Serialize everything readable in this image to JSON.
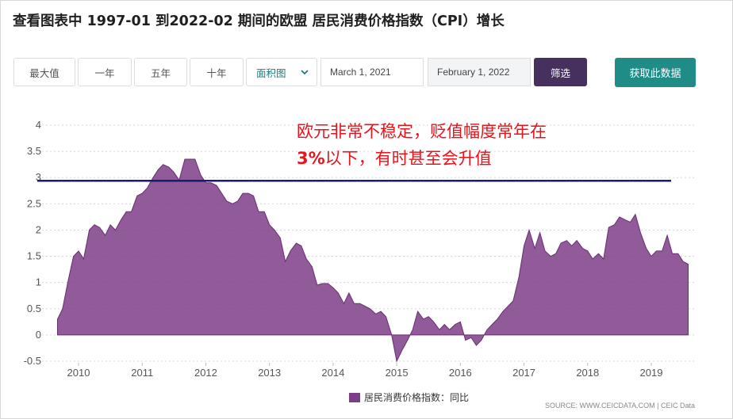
{
  "title": "查看图表中 1997-01 到2022-02 期间的欧盟 居民消费价格指数（CPI）增长",
  "toolbar": {
    "range_buttons": [
      "最大值",
      "一年",
      "五年",
      "十年"
    ],
    "chart_type": "面积图",
    "date_from": "March 1, 2021",
    "date_to": "February 1, 2022",
    "filter_label": "筛选",
    "fetch_label": "获取此数据"
  },
  "annotation": {
    "line1": "欧元非常不稳定，贬值幅度常年在",
    "line2_bold": "3%",
    "line2_rest": "以下，有时甚至会升值"
  },
  "legend_label": "居民消费价格指数：同比",
  "source": "SOURCE: WWW.CEICDATA.COM | CEIC Data",
  "colors": {
    "area": "#7c3e86",
    "reference_line": "#1a1a6e",
    "annotation": "#e8131b",
    "filter_button": "#46315e",
    "fetch_button": "#1f8c87"
  },
  "chart_data": {
    "type": "area",
    "x_ticks": [
      "2010",
      "2011",
      "2012",
      "2013",
      "2014",
      "2015",
      "2016",
      "2017",
      "2018",
      "2019"
    ],
    "y_ticks": [
      "4",
      "3.5",
      "3",
      "2.5",
      "2",
      "1.5",
      "1",
      "0.5",
      "0",
      "-0.5"
    ],
    "ylim": [
      -0.5,
      4
    ],
    "grid": true,
    "reference_line": 2.94,
    "series": [
      {
        "name": "居民消费价格指数：同比",
        "x": [
          2009.67,
          2009.75,
          2009.83,
          2009.92,
          2010.0,
          2010.08,
          2010.17,
          2010.25,
          2010.33,
          2010.42,
          2010.5,
          2010.58,
          2010.67,
          2010.75,
          2010.83,
          2010.92,
          2011.0,
          2011.08,
          2011.17,
          2011.25,
          2011.33,
          2011.42,
          2011.5,
          2011.58,
          2011.67,
          2011.75,
          2011.83,
          2011.92,
          2012.0,
          2012.08,
          2012.17,
          2012.25,
          2012.33,
          2012.42,
          2012.5,
          2012.58,
          2012.67,
          2012.75,
          2012.83,
          2012.92,
          2013.0,
          2013.08,
          2013.17,
          2013.25,
          2013.33,
          2013.42,
          2013.5,
          2013.58,
          2013.67,
          2013.75,
          2013.83,
          2013.92,
          2014.0,
          2014.08,
          2014.17,
          2014.25,
          2014.33,
          2014.42,
          2014.5,
          2014.58,
          2014.67,
          2014.75,
          2014.83,
          2014.92,
          2015.0,
          2015.08,
          2015.17,
          2015.25,
          2015.33,
          2015.42,
          2015.5,
          2015.58,
          2015.67,
          2015.75,
          2015.83,
          2015.92,
          2016.0,
          2016.08,
          2016.17,
          2016.25,
          2016.33,
          2016.42,
          2016.5,
          2016.58,
          2016.67,
          2016.75,
          2016.83,
          2016.92,
          2017.0,
          2017.08,
          2017.17,
          2017.25,
          2017.33,
          2017.42,
          2017.5,
          2017.58,
          2017.67,
          2017.75,
          2017.83,
          2017.92,
          2018.0,
          2018.08,
          2018.17,
          2018.25,
          2018.33,
          2018.42,
          2018.5,
          2018.58,
          2018.67,
          2018.75,
          2018.83,
          2018.92,
          2019.0,
          2019.08,
          2019.17,
          2019.25,
          2019.33,
          2019.42,
          2019.5,
          2019.58
        ],
        "values": [
          0.3,
          0.5,
          1.0,
          1.5,
          1.6,
          1.45,
          2.0,
          2.1,
          2.05,
          1.9,
          2.1,
          2.0,
          2.2,
          2.35,
          2.35,
          2.65,
          2.7,
          2.8,
          3.0,
          3.15,
          3.25,
          3.2,
          3.1,
          2.95,
          3.35,
          3.35,
          3.35,
          3.05,
          2.9,
          2.9,
          2.85,
          2.7,
          2.55,
          2.5,
          2.55,
          2.7,
          2.7,
          2.65,
          2.35,
          2.35,
          2.1,
          2.0,
          1.85,
          1.4,
          1.6,
          1.75,
          1.7,
          1.45,
          1.3,
          0.95,
          0.98,
          0.98,
          0.9,
          0.8,
          0.6,
          0.8,
          0.6,
          0.6,
          0.55,
          0.5,
          0.4,
          0.45,
          0.35,
          0.0,
          -0.5,
          -0.3,
          -0.1,
          0.1,
          0.45,
          0.3,
          0.35,
          0.25,
          0.1,
          0.2,
          0.1,
          0.2,
          0.25,
          -0.1,
          -0.05,
          -0.2,
          -0.1,
          0.1,
          0.2,
          0.3,
          0.45,
          0.55,
          0.65,
          1.1,
          1.7,
          2.0,
          1.65,
          1.95,
          1.6,
          1.5,
          1.55,
          1.75,
          1.8,
          1.7,
          1.8,
          1.65,
          1.6,
          1.45,
          1.55,
          1.45,
          2.05,
          2.1,
          2.25,
          2.2,
          2.15,
          2.3,
          1.95,
          1.65,
          1.5,
          1.6,
          1.6,
          1.9,
          1.55,
          1.55,
          1.4,
          1.35
        ]
      }
    ]
  }
}
